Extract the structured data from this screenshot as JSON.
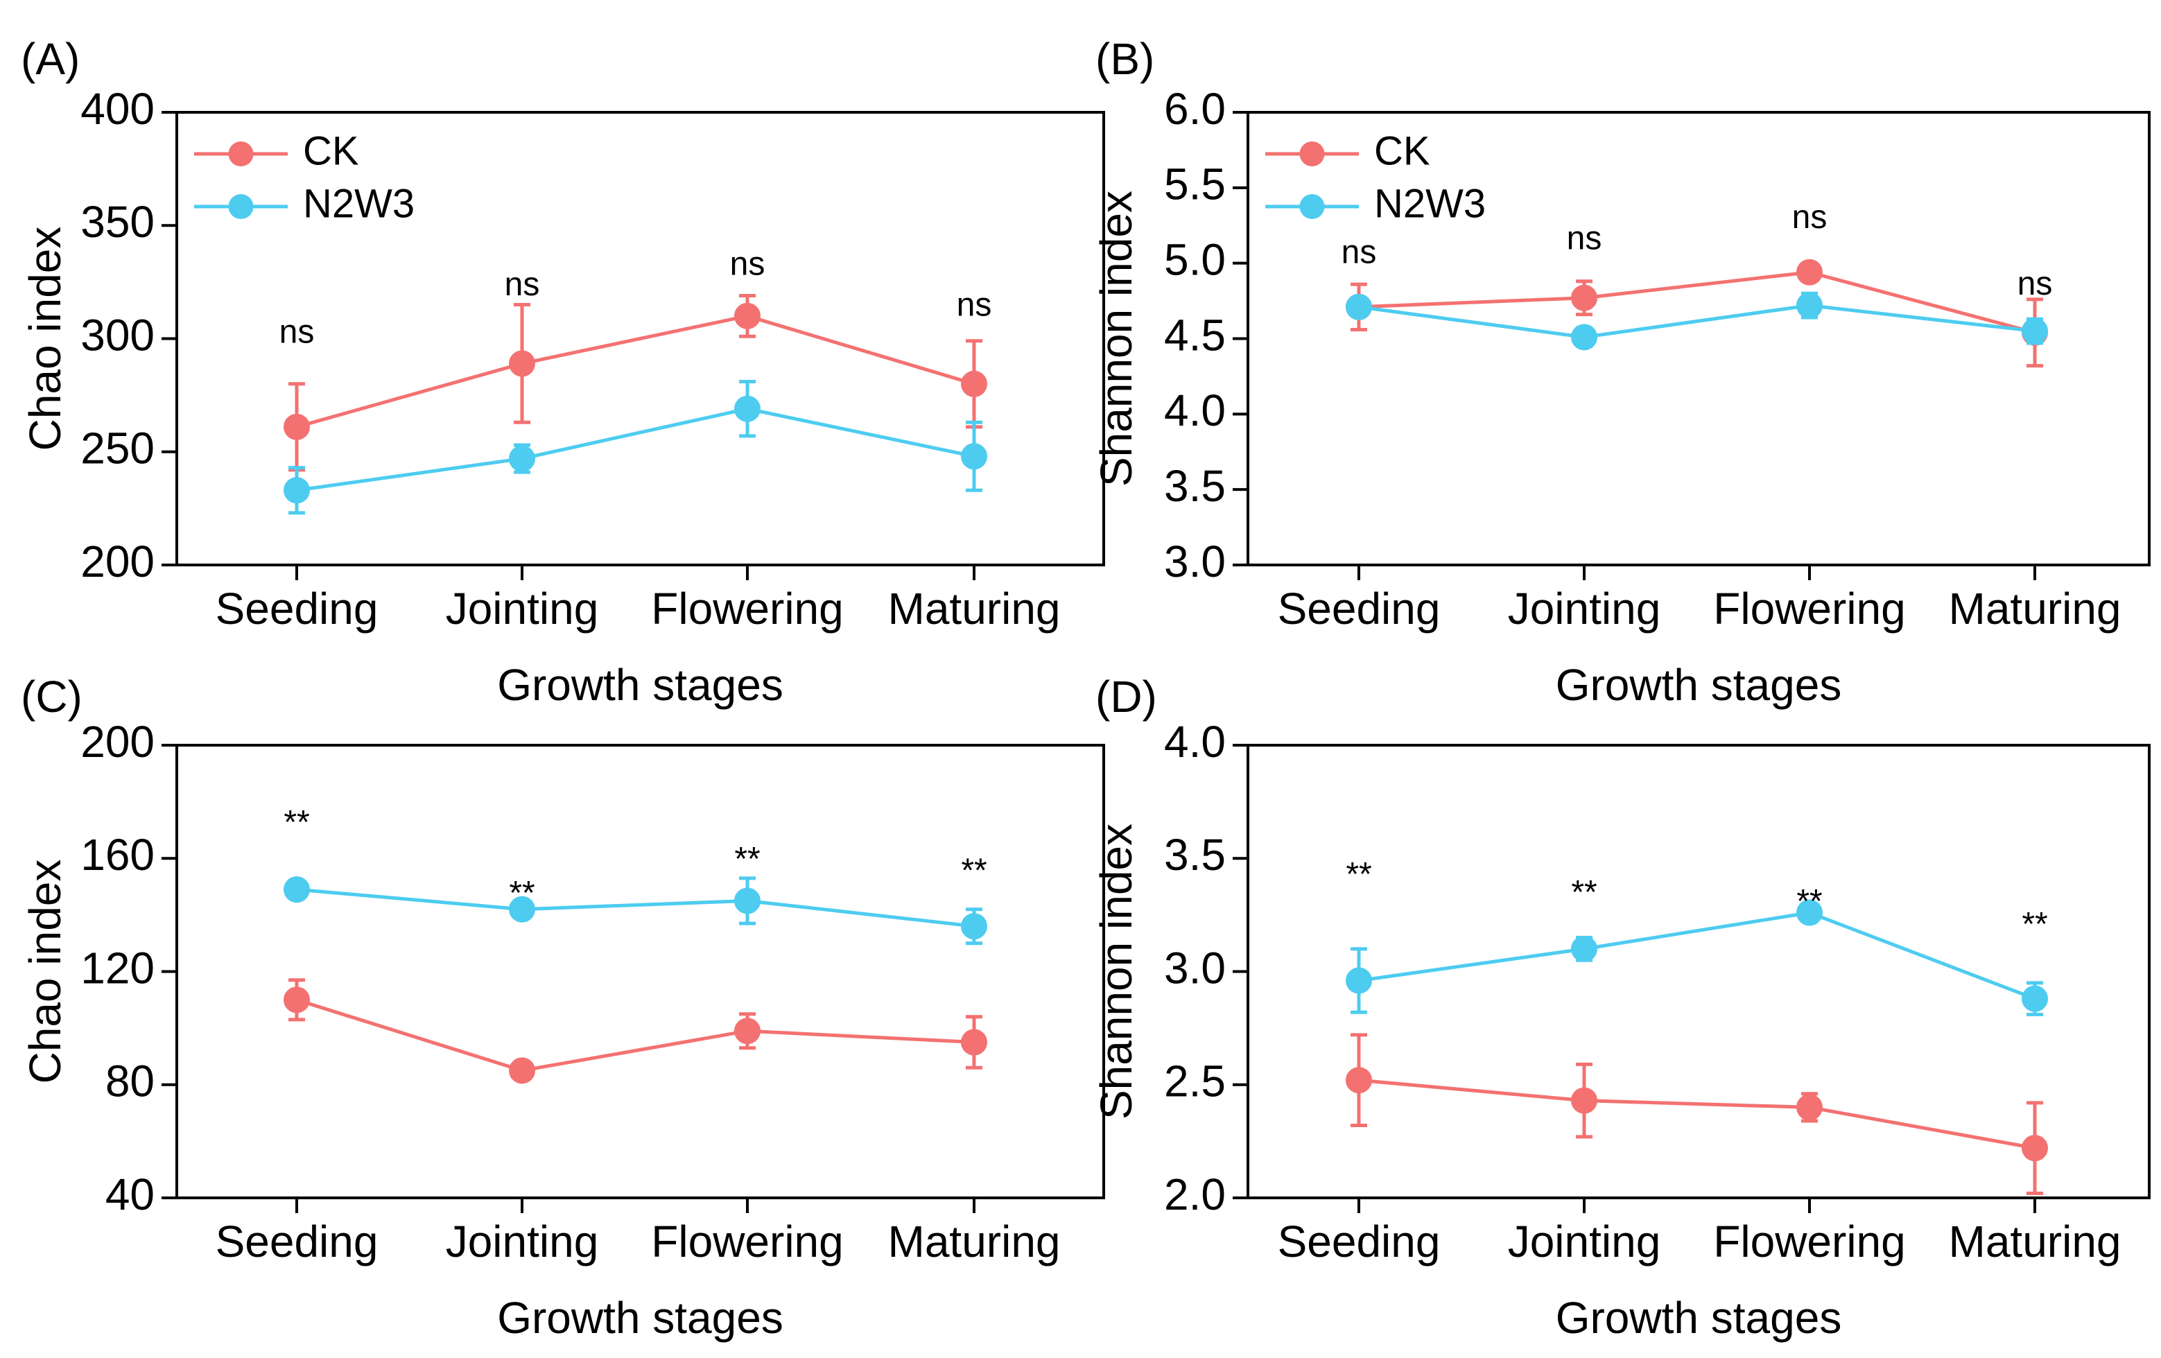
{
  "figure": {
    "colors": {
      "ck": "#F47171",
      "n2w3": "#4DCCF0",
      "axis": "#000000"
    }
  },
  "chart_data": [
    {
      "type": "line",
      "panel": "(A)",
      "xlabel": "Growth stages",
      "ylabel": "Chao index",
      "categories": [
        "Seeding",
        "Jointing",
        "Flowering",
        "Maturing"
      ],
      "ylim": [
        200,
        400
      ],
      "yticks": [
        "200",
        "250",
        "300",
        "350",
        "400"
      ],
      "series": [
        {
          "name": "CK",
          "values": [
            261,
            289,
            310,
            280
          ],
          "errors": [
            19,
            26,
            9,
            19
          ]
        },
        {
          "name": "N2W3",
          "values": [
            233,
            247,
            269,
            248
          ],
          "errors": [
            10,
            6,
            12,
            15
          ]
        }
      ],
      "significance": [
        "ns",
        "ns",
        "ns",
        "ns"
      ],
      "significance_y": [
        302,
        323,
        332,
        314
      ],
      "legend": "top-left"
    },
    {
      "type": "line",
      "panel": "(B)",
      "xlabel": "Growth stages",
      "ylabel": "Shannon index",
      "categories": [
        "Seeding",
        "Jointing",
        "Flowering",
        "Maturing"
      ],
      "ylim": [
        3.0,
        6.0
      ],
      "yticks": [
        "3.0",
        "3.5",
        "4.0",
        "4.5",
        "5.0",
        "5.5",
        "6.0"
      ],
      "series": [
        {
          "name": "CK",
          "values": [
            4.71,
            4.77,
            4.94,
            4.54
          ],
          "errors": [
            0.15,
            0.11,
            0.05,
            0.22
          ]
        },
        {
          "name": "N2W3",
          "values": [
            4.71,
            4.51,
            4.72,
            4.55
          ],
          "errors": [
            0.04,
            0.06,
            0.08,
            0.08
          ]
        }
      ],
      "significance": [
        "ns",
        "ns",
        "ns",
        "ns"
      ],
      "significance_y": [
        5.06,
        5.15,
        5.29,
        4.85
      ],
      "legend": "top-left"
    },
    {
      "type": "line",
      "panel": "(C)",
      "xlabel": "Growth stages",
      "ylabel": "Chao index",
      "categories": [
        "Seeding",
        "Jointing",
        "Flowering",
        "Maturing"
      ],
      "ylim": [
        40,
        200
      ],
      "yticks": [
        "40",
        "80",
        "120",
        "160",
        "200"
      ],
      "series": [
        {
          "name": "CK",
          "values": [
            110,
            85,
            99,
            95
          ],
          "errors": [
            7,
            2,
            6,
            9
          ]
        },
        {
          "name": "N2W3",
          "values": [
            149,
            142,
            145,
            136
          ],
          "errors": [
            3,
            2,
            8,
            6
          ]
        }
      ],
      "significance": [
        "**",
        "**",
        "**",
        "**"
      ],
      "significance_y": [
        172,
        147,
        159,
        155
      ],
      "legend": "none"
    },
    {
      "type": "line",
      "panel": "(D)",
      "xlabel": "Growth stages",
      "ylabel": "Shannon index",
      "categories": [
        "Seeding",
        "Jointing",
        "Flowering",
        "Maturing"
      ],
      "ylim": [
        2.0,
        4.0
      ],
      "yticks": [
        "2.0",
        "2.5",
        "3.0",
        "3.5",
        "4.0"
      ],
      "series": [
        {
          "name": "CK",
          "values": [
            2.52,
            2.43,
            2.4,
            2.22
          ],
          "errors": [
            0.2,
            0.16,
            0.06,
            0.2
          ]
        },
        {
          "name": "N2W3",
          "values": [
            2.96,
            3.1,
            3.26,
            2.88
          ],
          "errors": [
            0.14,
            0.05,
            0.03,
            0.07
          ]
        }
      ],
      "significance": [
        "**",
        "**",
        "**",
        "**"
      ],
      "significance_y": [
        3.42,
        3.34,
        3.3,
        3.2
      ],
      "legend": "none"
    }
  ]
}
